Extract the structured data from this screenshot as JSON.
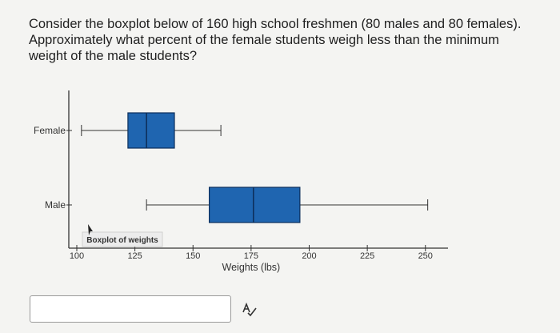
{
  "question": {
    "lines": [
      "Consider the boxplot below of 160 high school freshmen (80 males and 80 females).",
      "Approximately what percent of the female students weigh less than the minimum",
      "weight of the male students?"
    ]
  },
  "answer": {
    "value": "",
    "placeholder": ""
  },
  "icons": {
    "check": "spell-check-icon",
    "cursor": "mouse-pointer-icon"
  },
  "colors": {
    "box_fill": "#1f65b0",
    "box_stroke": "#0d2f5c",
    "line": "#333333"
  },
  "chart_data": {
    "type": "boxplot",
    "title": "Boxplot of weights",
    "xlabel": "Weights (lbs)",
    "ylabel": "",
    "xlim": [
      95,
      255
    ],
    "xticks": [
      100,
      125,
      150,
      175,
      200,
      225,
      250
    ],
    "grid": false,
    "series": [
      {
        "name": "Female",
        "min": 102,
        "q1": 122,
        "median": 130,
        "q3": 142,
        "max": 162
      },
      {
        "name": "Male",
        "min": 130,
        "q1": 157,
        "median": 176,
        "q3": 196,
        "max": 251
      }
    ]
  }
}
